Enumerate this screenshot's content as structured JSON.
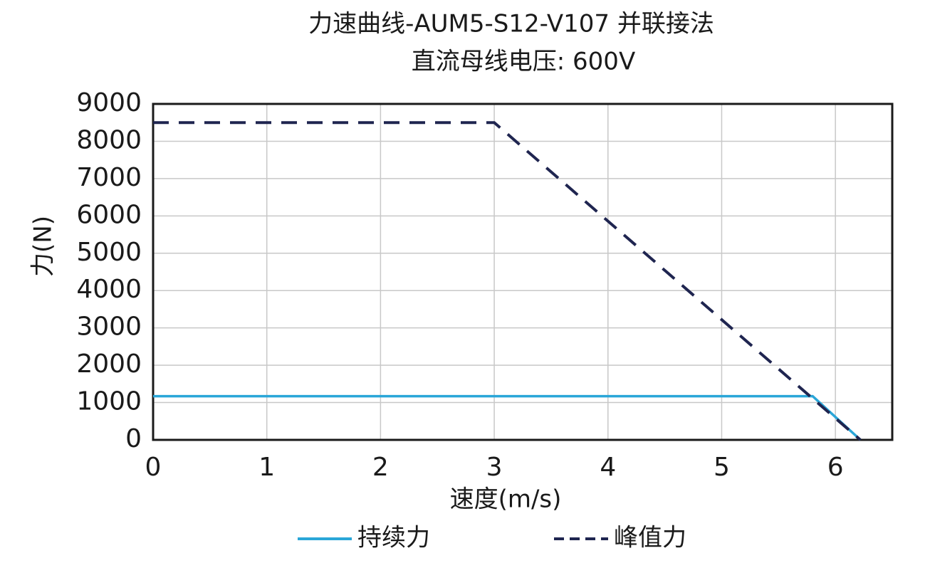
{
  "chart_data": {
    "type": "line",
    "title": "力速曲线-AUM5-S12-V107 并联接法",
    "subtitle": "直流母线电压: 600V",
    "x_label": "速度(m/s)",
    "y_label": "力(N)",
    "xlim": [
      0,
      6.5
    ],
    "xticks": [
      0,
      1,
      2,
      3,
      4,
      5,
      6
    ],
    "ylim": [
      0,
      9000
    ],
    "yticks": [
      0,
      1000,
      2000,
      3000,
      4000,
      5000,
      6000,
      7000,
      8000,
      9000
    ],
    "grid": true,
    "legend": "bottom",
    "series": [
      {
        "name": "持续力",
        "color": "#2aa6d8",
        "style": "solid",
        "x": [
          0,
          5.8,
          6.22
        ],
        "values": [
          1170,
          1170,
          0
        ]
      },
      {
        "name": "峰值力",
        "color": "#1f2550",
        "style": "dashed",
        "x": [
          0,
          3.0,
          6.22
        ],
        "values": [
          8500,
          8500,
          0
        ]
      }
    ]
  }
}
